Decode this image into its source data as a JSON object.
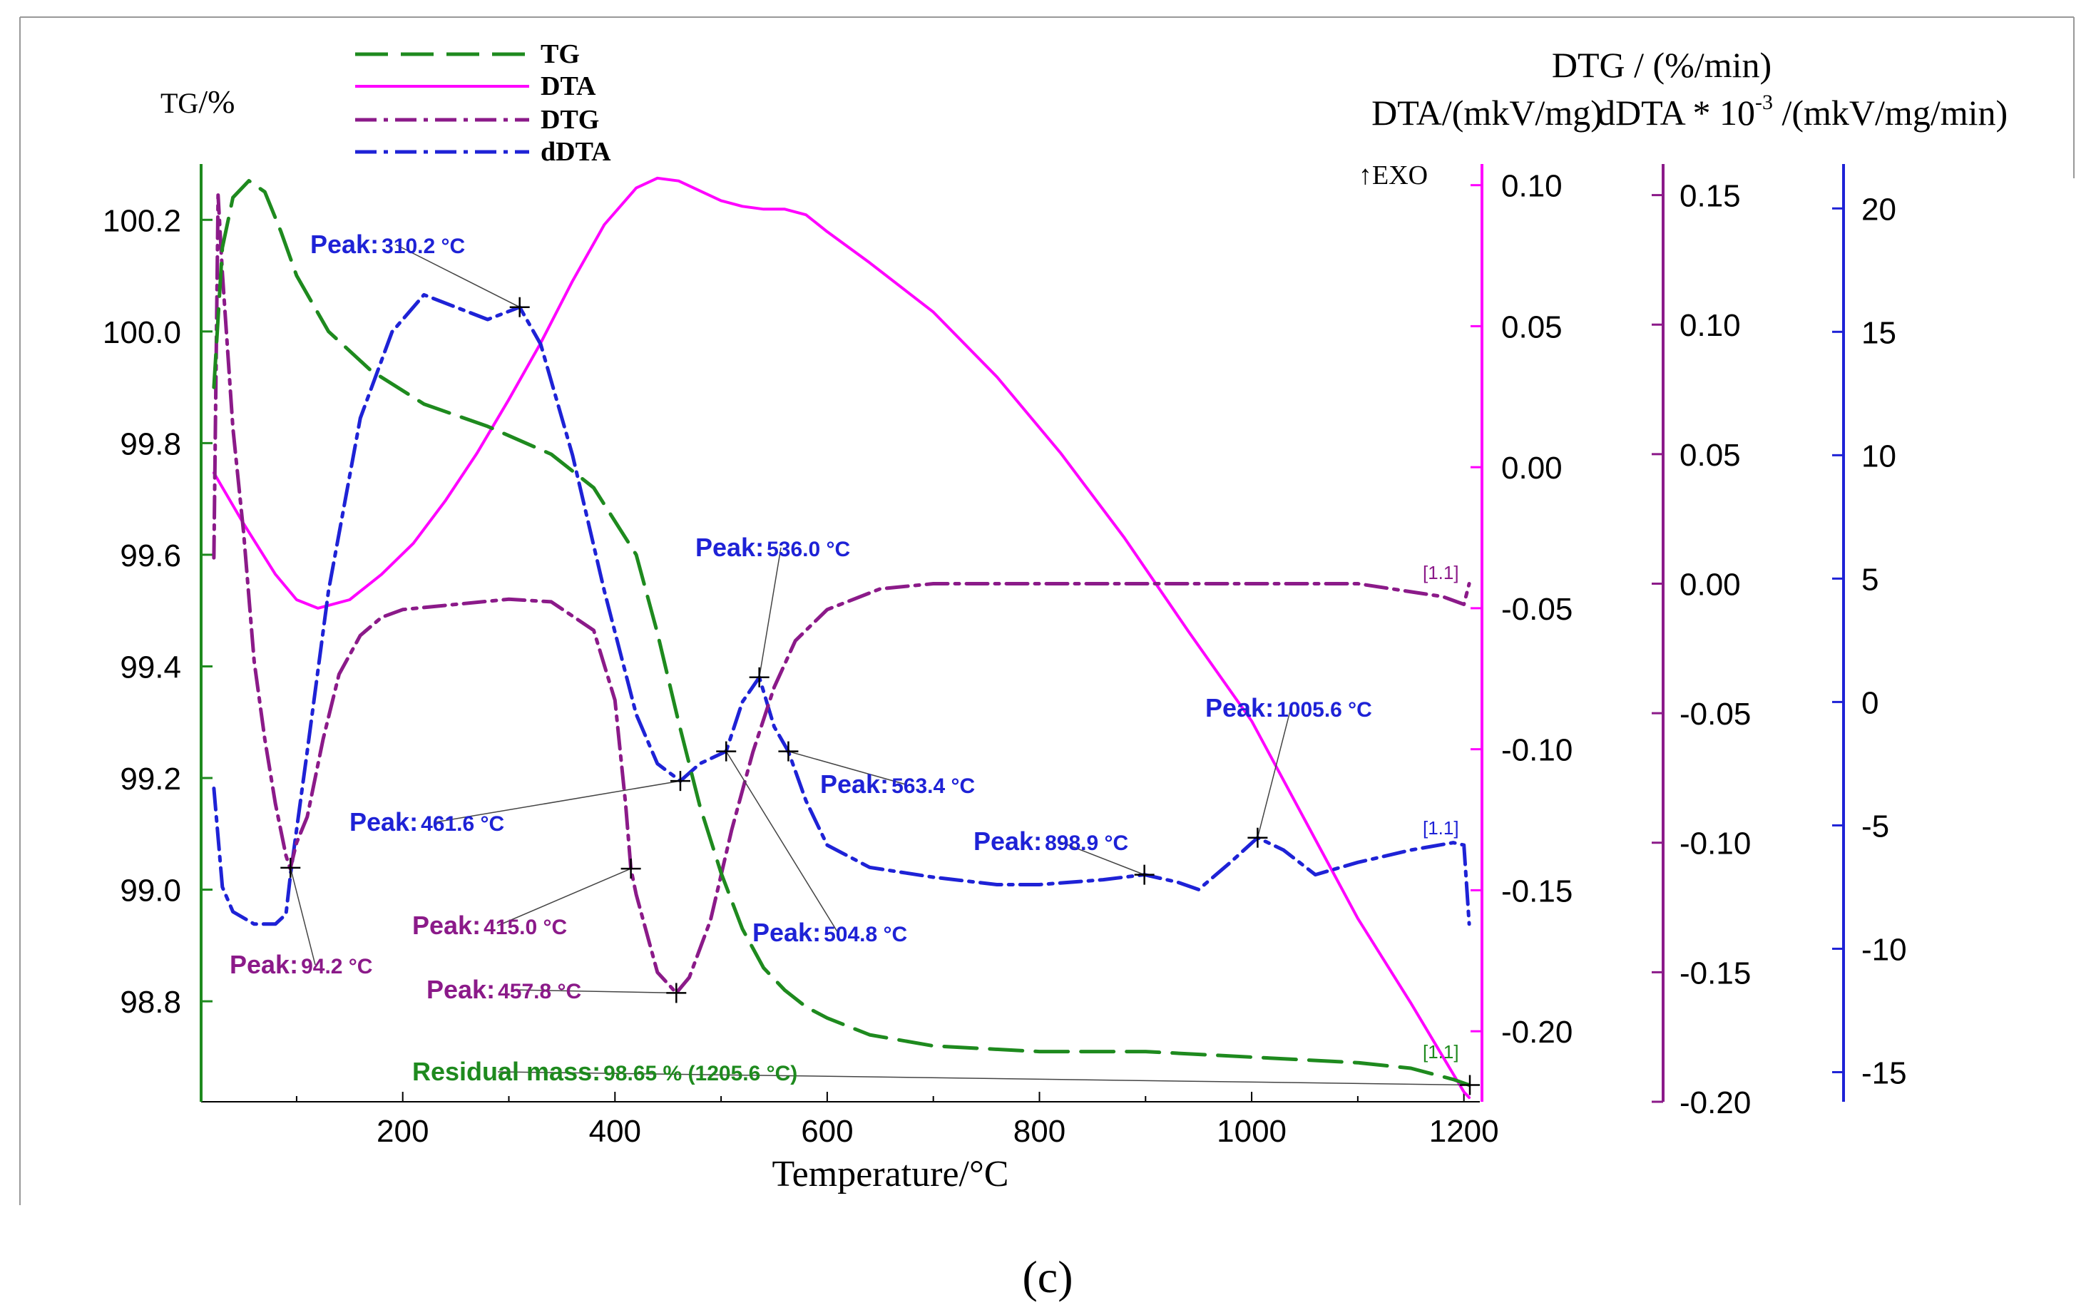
{
  "chart_data": {
    "type": "line",
    "panel_caption": "(c)",
    "xlabel": "Temperature/°C",
    "xlim": [
      10,
      1215
    ],
    "xticks": [
      200,
      400,
      600,
      800,
      1000,
      1200
    ],
    "axes": {
      "tg": {
        "label_main": "TG",
        "label_unit": "/%",
        "ylim": [
          98.62,
          100.3
        ],
        "ticks": [
          98.8,
          99.0,
          99.2,
          99.4,
          99.6,
          99.8,
          100.0,
          100.2
        ],
        "tick_labels": [
          "98.8",
          "99.0",
          "99.2",
          "99.4",
          "99.6",
          "99.8",
          "100.0",
          "100.2"
        ],
        "color": "#1e8a1e"
      },
      "dta": {
        "label": "DTA/(mkV/mg)",
        "ylim": [
          -0.225,
          0.1075
        ],
        "ticks": [
          -0.2,
          -0.15,
          -0.1,
          -0.05,
          0.0,
          0.05,
          0.1
        ],
        "tick_labels": [
          "-0.20",
          "-0.15",
          "-0.10",
          "-0.05",
          "0.00",
          "0.05",
          "0.10"
        ],
        "color": "#ff00ff",
        "exo_label": "↑EXO"
      },
      "dtg": {
        "label": "DTG / (%/min)",
        "ylim": [
          -0.2,
          0.162
        ],
        "ticks": [
          -0.2,
          -0.15,
          -0.1,
          -0.05,
          0.0,
          0.05,
          0.1,
          0.15
        ],
        "tick_labels": [
          "-0.20",
          "-0.15",
          "-0.10",
          "-0.05",
          "0.00",
          "0.05",
          "0.10",
          "0.15"
        ],
        "color": "#8b1a89"
      },
      "ddta": {
        "label": "dDTA * 10^-3 /(mkV/mg/min)",
        "label_pre": "dDTA * 10",
        "label_sup": "-3",
        "label_post": " /(mkV/mg/min)",
        "ylim": [
          -16.2,
          21.8
        ],
        "ticks": [
          -15,
          -10,
          -5,
          0,
          5,
          10,
          15,
          20
        ],
        "tick_labels": [
          "-15",
          "-10",
          "-5",
          "0",
          "5",
          "10",
          "15",
          "20"
        ],
        "color": "#1e22d6"
      }
    },
    "legend": [
      {
        "name": "TG",
        "color": "#1e8a1e",
        "style": "dashed"
      },
      {
        "name": "DTA",
        "color": "#ff00ff",
        "style": "solid"
      },
      {
        "name": "DTG",
        "color": "#8b1a89",
        "style": "dashdot"
      },
      {
        "name": "dDTA",
        "color": "#1e22d6",
        "style": "dashdot"
      }
    ],
    "series": [
      {
        "name": "TG",
        "axis": "tg",
        "x": [
          22,
          30,
          40,
          55,
          70,
          85,
          100,
          130,
          170,
          220,
          280,
          340,
          380,
          420,
          440,
          460,
          480,
          500,
          520,
          540,
          560,
          580,
          600,
          640,
          700,
          800,
          900,
          1000,
          1100,
          1150,
          1190,
          1205
        ],
        "y": [
          99.9,
          100.15,
          100.24,
          100.27,
          100.25,
          100.18,
          100.1,
          100.0,
          99.93,
          99.87,
          99.83,
          99.78,
          99.72,
          99.6,
          99.46,
          99.3,
          99.15,
          99.03,
          98.93,
          98.86,
          98.82,
          98.79,
          98.77,
          98.74,
          98.72,
          98.71,
          98.71,
          98.7,
          98.69,
          98.68,
          98.66,
          98.65
        ]
      },
      {
        "name": "DTA",
        "axis": "dta",
        "x": [
          22,
          50,
          80,
          100,
          120,
          150,
          180,
          210,
          240,
          270,
          300,
          330,
          360,
          390,
          420,
          440,
          460,
          480,
          500,
          520,
          540,
          560,
          580,
          600,
          640,
          700,
          760,
          820,
          880,
          940,
          1000,
          1050,
          1100,
          1150,
          1200,
          1205
        ],
        "y": [
          -0.002,
          -0.02,
          -0.038,
          -0.047,
          -0.05,
          -0.047,
          -0.038,
          -0.027,
          -0.012,
          0.005,
          0.024,
          0.044,
          0.066,
          0.086,
          0.099,
          0.1025,
          0.1015,
          0.098,
          0.0945,
          0.0925,
          0.0915,
          0.0915,
          0.0895,
          0.0835,
          0.0725,
          0.055,
          0.032,
          0.005,
          -0.025,
          -0.058,
          -0.09,
          -0.125,
          -0.16,
          -0.19,
          -0.2215,
          -0.2235
        ]
      },
      {
        "name": "DTG",
        "axis": "dtg",
        "x": [
          22,
          26,
          30,
          40,
          50,
          60,
          70,
          80,
          90,
          94,
          100,
          110,
          125,
          140,
          160,
          180,
          200,
          250,
          300,
          340,
          380,
          400,
          410,
          415,
          420,
          440,
          457.8,
          470,
          490,
          510,
          530,
          550,
          570,
          600,
          650,
          700,
          800,
          900,
          1000,
          1100,
          1180,
          1200,
          1205
        ],
        "y": [
          0.01,
          0.15,
          0.12,
          0.06,
          0.02,
          -0.03,
          -0.06,
          -0.085,
          -0.105,
          -0.11,
          -0.1,
          -0.09,
          -0.06,
          -0.035,
          -0.02,
          -0.013,
          -0.01,
          -0.008,
          -0.006,
          -0.007,
          -0.018,
          -0.045,
          -0.085,
          -0.11,
          -0.12,
          -0.15,
          -0.158,
          -0.152,
          -0.13,
          -0.095,
          -0.065,
          -0.04,
          -0.022,
          -0.01,
          -0.002,
          0.0,
          0.0,
          0.0,
          0.0,
          0.0,
          -0.005,
          -0.008,
          0.0
        ]
      },
      {
        "name": "dDTA",
        "axis": "ddta",
        "x": [
          22,
          30,
          40,
          60,
          80,
          90,
          94.2,
          110,
          130,
          160,
          190,
          220,
          250,
          280,
          310.2,
          330,
          360,
          390,
          420,
          440,
          461.6,
          480,
          504.8,
          520,
          536.0,
          550,
          563.4,
          580,
          600,
          640,
          700,
          760,
          800,
          860,
          898.9,
          930,
          950,
          980,
          1005.6,
          1030,
          1060,
          1100,
          1150,
          1190,
          1200,
          1205
        ],
        "y": [
          -3.5,
          -7.5,
          -8.5,
          -9.0,
          -9.0,
          -8.6,
          -7.0,
          -2.0,
          4.5,
          11.5,
          15.0,
          16.5,
          16.0,
          15.5,
          16.0,
          14.5,
          10.0,
          4.5,
          -0.5,
          -2.5,
          -3.2,
          -2.5,
          -2.0,
          0.0,
          1.0,
          -1.0,
          -2.0,
          -4.0,
          -5.8,
          -6.7,
          -7.1,
          -7.4,
          -7.4,
          -7.2,
          -7.0,
          -7.3,
          -7.6,
          -6.5,
          -5.5,
          -6.0,
          -7.0,
          -6.5,
          -6.0,
          -5.7,
          -5.8,
          -9.0
        ]
      }
    ],
    "annotations": [
      {
        "text_main": "Peak:",
        "text_value": "310.2 °C",
        "series": "dDTA",
        "x": 310.2,
        "color": "#1e22d6"
      },
      {
        "text_main": "Peak:",
        "text_value": "536.0 °C",
        "series": "dDTA",
        "x": 536.0,
        "color": "#1e22d6"
      },
      {
        "text_main": "Peak:",
        "text_value": "461.6 °C",
        "series": "dDTA",
        "x": 461.6,
        "color": "#1e22d6"
      },
      {
        "text_main": "Peak:",
        "text_value": "563.4 °C",
        "series": "dDTA",
        "x": 563.4,
        "color": "#1e22d6"
      },
      {
        "text_main": "Peak:",
        "text_value": "504.8 °C",
        "series": "dDTA",
        "x": 504.8,
        "color": "#1e22d6"
      },
      {
        "text_main": "Peak:",
        "text_value": "898.9 °C",
        "series": "dDTA",
        "x": 898.9,
        "color": "#1e22d6"
      },
      {
        "text_main": "Peak:",
        "text_value": "1005.6 °C",
        "series": "dDTA",
        "x": 1005.6,
        "color": "#1e22d6"
      },
      {
        "text_main": "Peak:",
        "text_value": "94.2 °C",
        "series": "DTG",
        "x": 94.2,
        "color": "#8b1a89"
      },
      {
        "text_main": "Peak:",
        "text_value": "415.0 °C",
        "series": "DTG",
        "x": 415.0,
        "color": "#8b1a89"
      },
      {
        "text_main": "Peak:",
        "text_value": "457.8 °C",
        "series": "DTG",
        "x": 457.8,
        "color": "#8b1a89"
      },
      {
        "text_main": "Residual mass:",
        "text_value": "98.65 % (1205.6 °C)",
        "series": "TG",
        "x": 1205.6,
        "color": "#1e8a1e"
      }
    ],
    "end_markers": [
      {
        "text": "[1.1]",
        "series": "DTG",
        "color": "#8b1a89"
      },
      {
        "text": "[1.1]",
        "series": "dDTA",
        "color": "#1e22d6"
      },
      {
        "text": "[1.1]",
        "series": "TG",
        "color": "#1e8a1e"
      }
    ]
  }
}
